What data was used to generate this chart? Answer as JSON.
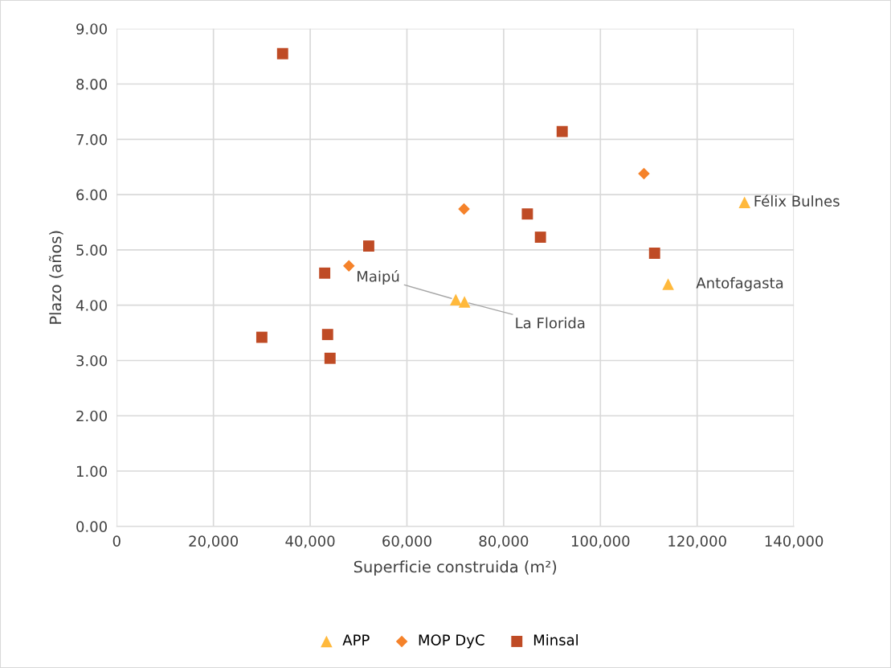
{
  "chart_data": {
    "type": "scatter",
    "xlabel": "Superficie construida (m²)",
    "ylabel": "Plazo (años)",
    "xlim": [
      0,
      140000
    ],
    "ylim": [
      0,
      9
    ],
    "xticks": [
      {
        "value": 0,
        "label": "0"
      },
      {
        "value": 20000,
        "label": "20,000"
      },
      {
        "value": 40000,
        "label": "40,000"
      },
      {
        "value": 60000,
        "label": "60,000"
      },
      {
        "value": 80000,
        "label": "80,000"
      },
      {
        "value": 100000,
        "label": "100,000"
      },
      {
        "value": 120000,
        "label": "120,000"
      },
      {
        "value": 140000,
        "label": "140,000"
      }
    ],
    "yticks": [
      {
        "value": 0,
        "label": "0.00"
      },
      {
        "value": 1,
        "label": "1.00"
      },
      {
        "value": 2,
        "label": "2.00"
      },
      {
        "value": 3,
        "label": "3.00"
      },
      {
        "value": 4,
        "label": "4.00"
      },
      {
        "value": 5,
        "label": "5.00"
      },
      {
        "value": 6,
        "label": "6.00"
      },
      {
        "value": 7,
        "label": "7.00"
      },
      {
        "value": 8,
        "label": "8.00"
      },
      {
        "value": 9,
        "label": "9.00"
      }
    ],
    "grid": true,
    "legend": "bottom",
    "series": [
      {
        "name": "APP",
        "color": "#ffb93c",
        "marker": "triangle",
        "x": [
          70100,
          71900,
          114000,
          129800
        ],
        "values": [
          4.1,
          4.06,
          4.38,
          5.86
        ]
      },
      {
        "name": "MOP DyC",
        "color": "#f5822a",
        "marker": "diamond",
        "x": [
          109000,
          71800,
          48000
        ],
        "values": [
          6.38,
          5.74,
          4.71
        ]
      },
      {
        "name": "Minsal",
        "color": "#bf4b25",
        "marker": "square",
        "x": [
          34300,
          92100,
          84900,
          87600,
          111200,
          52100,
          43000,
          43600,
          44100,
          30000
        ],
        "values": [
          8.55,
          7.14,
          5.65,
          5.23,
          4.94,
          5.07,
          4.58,
          3.47,
          3.04,
          3.42
        ]
      }
    ],
    "annotations": [
      {
        "text": "Maipú",
        "x": 70100,
        "y": 4.1
      },
      {
        "text": "La Florida",
        "x": 71900,
        "y": 4.06
      },
      {
        "text": "Antofagasta",
        "x": 114000,
        "y": 4.38
      },
      {
        "text": "Félix Bulnes",
        "x": 129800,
        "y": 5.86
      }
    ]
  }
}
